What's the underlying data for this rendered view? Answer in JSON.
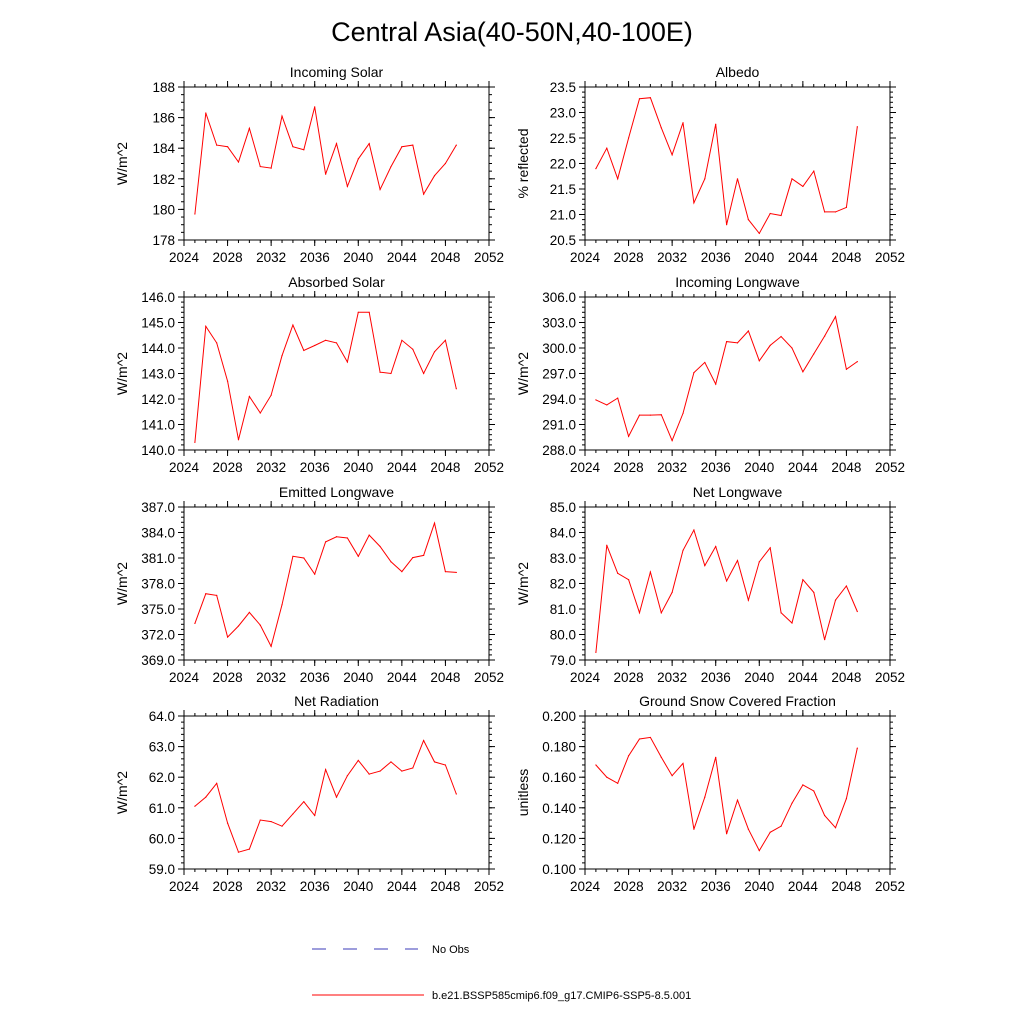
{
  "title": "Central Asia(40-50N,40-100E)",
  "legend": [
    {
      "label": "No Obs",
      "color": "#3b3bb8",
      "style": "dashed"
    },
    {
      "label": "b.e21.BSSP585cmip6.f09_g17.CMIP6-SSP5-8.5.001",
      "color": "#ff0000",
      "style": "solid"
    }
  ],
  "series_color": "#ff0000",
  "chart_data": [
    {
      "type": "line",
      "title": "Incoming Solar",
      "xlabel": "",
      "ylabel": "W/m^2",
      "xlim": [
        2024,
        2052
      ],
      "ylim": [
        178,
        188
      ],
      "xticks": [
        "2024",
        "2028",
        "2032",
        "2036",
        "2040",
        "2044",
        "2048",
        "2052"
      ],
      "yticks": [
        "178",
        "180",
        "182",
        "184",
        "186",
        "188"
      ],
      "ymajor": [
        178,
        180,
        182,
        184,
        186,
        188
      ],
      "yminor_step": 0.5,
      "x": [
        2025,
        2026,
        2027,
        2028,
        2029,
        2030,
        2031,
        2032,
        2033,
        2034,
        2035,
        2036,
        2037,
        2038,
        2039,
        2040,
        2041,
        2042,
        2043,
        2044,
        2045,
        2046,
        2047,
        2048,
        2049
      ],
      "values": [
        179.7,
        186.3,
        184.2,
        184.1,
        183.1,
        185.3,
        182.8,
        182.7,
        186.1,
        184.1,
        183.9,
        186.7,
        182.3,
        184.3,
        181.5,
        183.3,
        184.3,
        181.3,
        182.8,
        184.1,
        184.2,
        181.0,
        182.2,
        183.0,
        184.2
      ]
    },
    {
      "type": "line",
      "title": "Albedo",
      "xlabel": "",
      "ylabel": "% reflected",
      "xlim": [
        2024,
        2052
      ],
      "ylim": [
        20.5,
        23.5
      ],
      "xticks": [
        "2024",
        "2028",
        "2032",
        "2036",
        "2040",
        "2044",
        "2048",
        "2052"
      ],
      "yticks": [
        "20.5",
        "21.0",
        "21.5",
        "22.0",
        "22.5",
        "23.0",
        "23.5"
      ],
      "ymajor": [
        20.5,
        21.0,
        21.5,
        22.0,
        22.5,
        23.0,
        23.5
      ],
      "yminor_step": 0.1,
      "x": [
        2025,
        2026,
        2027,
        2028,
        2029,
        2030,
        2031,
        2032,
        2033,
        2034,
        2035,
        2036,
        2037,
        2038,
        2039,
        2040,
        2041,
        2042,
        2043,
        2044,
        2045,
        2046,
        2047,
        2048,
        2049
      ],
      "values": [
        21.9,
        22.3,
        21.7,
        22.5,
        23.27,
        23.29,
        22.7,
        22.17,
        22.8,
        21.23,
        21.7,
        22.77,
        20.8,
        21.7,
        20.9,
        20.63,
        21.02,
        20.98,
        21.7,
        21.55,
        21.85,
        21.05,
        21.05,
        21.14,
        22.72
      ]
    },
    {
      "type": "line",
      "title": "Absorbed Solar",
      "xlabel": "",
      "ylabel": "W/m^2",
      "xlim": [
        2024,
        2052
      ],
      "ylim": [
        140,
        146
      ],
      "xticks": [
        "2024",
        "2028",
        "2032",
        "2036",
        "2040",
        "2044",
        "2048",
        "2052"
      ],
      "yticks": [
        "140.0",
        "141.0",
        "142.0",
        "143.0",
        "144.0",
        "145.0",
        "146.0"
      ],
      "ymajor": [
        140,
        141,
        142,
        143,
        144,
        145,
        146
      ],
      "yminor_step": 0.2,
      "x": [
        2025,
        2026,
        2027,
        2028,
        2029,
        2030,
        2031,
        2032,
        2033,
        2034,
        2035,
        2036,
        2037,
        2038,
        2039,
        2040,
        2041,
        2042,
        2043,
        2044,
        2045,
        2046,
        2047,
        2048,
        2049
      ],
      "values": [
        140.3,
        144.85,
        144.2,
        142.7,
        140.4,
        142.1,
        141.45,
        142.15,
        143.7,
        144.9,
        143.9,
        144.1,
        144.3,
        144.2,
        143.45,
        145.4,
        145.4,
        143.05,
        143.0,
        144.3,
        143.95,
        143.0,
        143.85,
        144.3,
        142.4
      ]
    },
    {
      "type": "line",
      "title": "Incoming Longwave",
      "xlabel": "",
      "ylabel": "W/m^2",
      "xlim": [
        2024,
        2052
      ],
      "ylim": [
        288,
        306
      ],
      "xticks": [
        "2024",
        "2028",
        "2032",
        "2036",
        "2040",
        "2044",
        "2048",
        "2052"
      ],
      "yticks": [
        "288.0",
        "291.0",
        "294.0",
        "297.0",
        "300.0",
        "303.0",
        "306.0"
      ],
      "ymajor": [
        288,
        291,
        294,
        297,
        300,
        303,
        306
      ],
      "yminor_step": 0.6,
      "x": [
        2025,
        2026,
        2027,
        2028,
        2029,
        2030,
        2031,
        2032,
        2033,
        2034,
        2035,
        2036,
        2037,
        2038,
        2039,
        2040,
        2041,
        2042,
        2043,
        2044,
        2045,
        2046,
        2047,
        2048,
        2049
      ],
      "values": [
        293.9,
        293.3,
        294.1,
        289.6,
        292.1,
        292.1,
        292.15,
        289.1,
        292.3,
        297.1,
        298.3,
        295.75,
        300.75,
        300.6,
        302.0,
        298.5,
        300.3,
        301.35,
        300.0,
        297.2,
        299.3,
        301.4,
        303.7,
        297.5,
        298.4
      ]
    },
    {
      "type": "line",
      "title": "Emitted Longwave",
      "xlabel": "",
      "ylabel": "W/m^2",
      "xlim": [
        2024,
        2052
      ],
      "ylim": [
        369,
        387
      ],
      "xticks": [
        "2024",
        "2028",
        "2032",
        "2036",
        "2040",
        "2044",
        "2048",
        "2052"
      ],
      "yticks": [
        "369.0",
        "372.0",
        "375.0",
        "378.0",
        "381.0",
        "384.0",
        "387.0"
      ],
      "ymajor": [
        369,
        372,
        375,
        378,
        381,
        384,
        387
      ],
      "yminor_step": 0.6,
      "x": [
        2025,
        2026,
        2027,
        2028,
        2029,
        2030,
        2031,
        2032,
        2033,
        2034,
        2035,
        2036,
        2037,
        2038,
        2039,
        2040,
        2041,
        2042,
        2043,
        2044,
        2045,
        2046,
        2047,
        2048,
        2049
      ],
      "values": [
        373.3,
        376.8,
        376.6,
        371.7,
        373.0,
        374.6,
        373.1,
        370.6,
        375.5,
        381.2,
        381.0,
        379.1,
        382.9,
        383.5,
        383.35,
        381.2,
        383.7,
        382.35,
        380.55,
        379.4,
        381.05,
        381.3,
        385.1,
        379.4,
        379.3
      ]
    },
    {
      "type": "line",
      "title": "Net Longwave",
      "xlabel": "",
      "ylabel": "W/m^2",
      "xlim": [
        2024,
        2052
      ],
      "ylim": [
        79,
        85
      ],
      "xticks": [
        "2024",
        "2028",
        "2032",
        "2036",
        "2040",
        "2044",
        "2048",
        "2052"
      ],
      "yticks": [
        "79.0",
        "80.0",
        "81.0",
        "82.0",
        "83.0",
        "84.0",
        "85.0"
      ],
      "ymajor": [
        79,
        80,
        81,
        82,
        83,
        84,
        85
      ],
      "yminor_step": 0.2,
      "x": [
        2025,
        2026,
        2027,
        2028,
        2029,
        2030,
        2031,
        2032,
        2033,
        2034,
        2035,
        2036,
        2037,
        2038,
        2039,
        2040,
        2041,
        2042,
        2043,
        2044,
        2045,
        2046,
        2047,
        2048,
        2049
      ],
      "values": [
        79.3,
        83.5,
        82.4,
        82.15,
        80.85,
        82.45,
        80.85,
        81.65,
        83.3,
        84.1,
        82.7,
        83.45,
        82.1,
        82.9,
        81.35,
        82.85,
        83.4,
        80.85,
        80.45,
        82.15,
        81.65,
        79.8,
        81.35,
        81.9,
        80.9
      ]
    },
    {
      "type": "line",
      "title": "Net Radiation",
      "xlabel": "",
      "ylabel": "W/m^2",
      "xlim": [
        2024,
        2052
      ],
      "ylim": [
        59,
        64
      ],
      "xticks": [
        "2024",
        "2028",
        "2032",
        "2036",
        "2040",
        "2044",
        "2048",
        "2052"
      ],
      "yticks": [
        "59.0",
        "60.0",
        "61.0",
        "62.0",
        "63.0",
        "64.0"
      ],
      "ymajor": [
        59,
        60,
        61,
        62,
        63,
        64
      ],
      "yminor_step": 0.2,
      "x": [
        2025,
        2026,
        2027,
        2028,
        2029,
        2030,
        2031,
        2032,
        2033,
        2034,
        2035,
        2036,
        2037,
        2038,
        2039,
        2040,
        2041,
        2042,
        2043,
        2044,
        2045,
        2046,
        2047,
        2048,
        2049
      ],
      "values": [
        61.05,
        61.35,
        61.8,
        60.5,
        59.55,
        59.65,
        60.6,
        60.55,
        60.4,
        60.8,
        61.2,
        60.75,
        62.25,
        61.35,
        62.05,
        62.55,
        62.1,
        62.2,
        62.5,
        62.2,
        62.3,
        63.2,
        62.5,
        62.4,
        61.45
      ]
    },
    {
      "type": "line",
      "title": "Ground Snow Covered Fraction",
      "xlabel": "",
      "ylabel": "unitless",
      "xlim": [
        2024,
        2052
      ],
      "ylim": [
        0.1,
        0.2
      ],
      "xticks": [
        "2024",
        "2028",
        "2032",
        "2036",
        "2040",
        "2044",
        "2048",
        "2052"
      ],
      "yticks": [
        "0.100",
        "0.120",
        "0.140",
        "0.160",
        "0.180",
        "0.200"
      ],
      "ymajor": [
        0.1,
        0.12,
        0.14,
        0.16,
        0.18,
        0.2
      ],
      "yminor_step": 0.004,
      "x": [
        2025,
        2026,
        2027,
        2028,
        2029,
        2030,
        2031,
        2032,
        2033,
        2034,
        2035,
        2036,
        2037,
        2038,
        2039,
        2040,
        2041,
        2042,
        2043,
        2044,
        2045,
        2046,
        2047,
        2048,
        2049
      ],
      "values": [
        0.168,
        0.16,
        0.156,
        0.174,
        0.185,
        0.186,
        0.173,
        0.161,
        0.169,
        0.126,
        0.147,
        0.173,
        0.123,
        0.145,
        0.126,
        0.112,
        0.124,
        0.128,
        0.143,
        0.155,
        0.151,
        0.135,
        0.127,
        0.146,
        0.179
      ]
    }
  ]
}
